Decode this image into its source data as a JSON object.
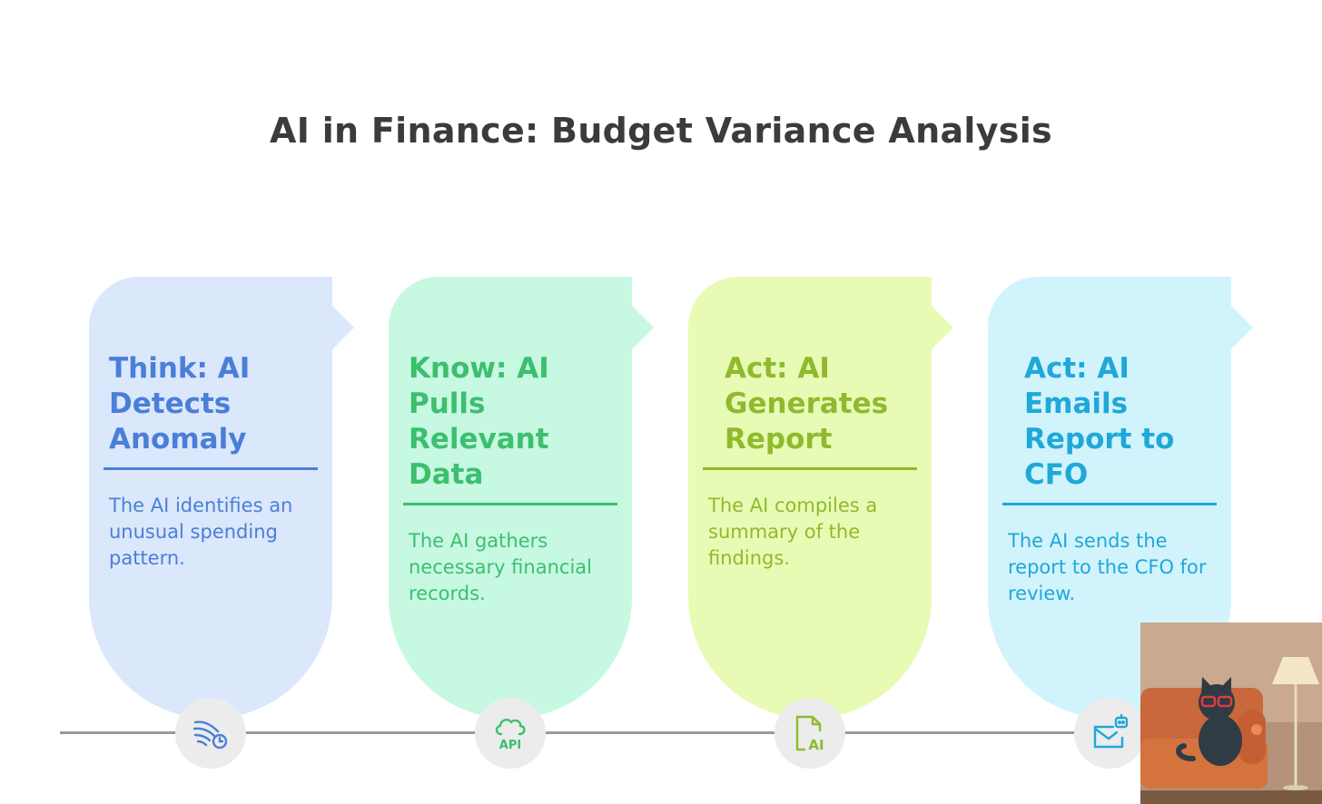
{
  "title": "AI in Finance: Budget Variance Analysis",
  "steps": [
    {
      "title": "Think: AI Detects Anomaly",
      "description": "The AI identifies an unusual spending pattern.",
      "icon": "wind-clock-icon",
      "colors": {
        "bg": "#dbe7fb",
        "accent": "#4a7fd8"
      }
    },
    {
      "title": "Know: AI Pulls Relevant Data",
      "description": "The AI gathers necessary financial records.",
      "icon": "cloud-api-icon",
      "icon_text": "API",
      "colors": {
        "bg": "#c6f8e2",
        "accent": "#3cbf6e"
      }
    },
    {
      "title": "Act: AI Generates Report",
      "description": "The AI compiles a summary of the findings.",
      "icon": "document-ai-icon",
      "icon_text": "AI",
      "colors": {
        "bg": "#e8fbb4",
        "accent": "#8fba2e"
      }
    },
    {
      "title": "Act: AI Emails Report to CFO",
      "description": "The AI sends the report to the CFO for review.",
      "icon": "email-bot-icon",
      "colors": {
        "bg": "#d1f3fc",
        "accent": "#1fa8d8"
      }
    }
  ]
}
